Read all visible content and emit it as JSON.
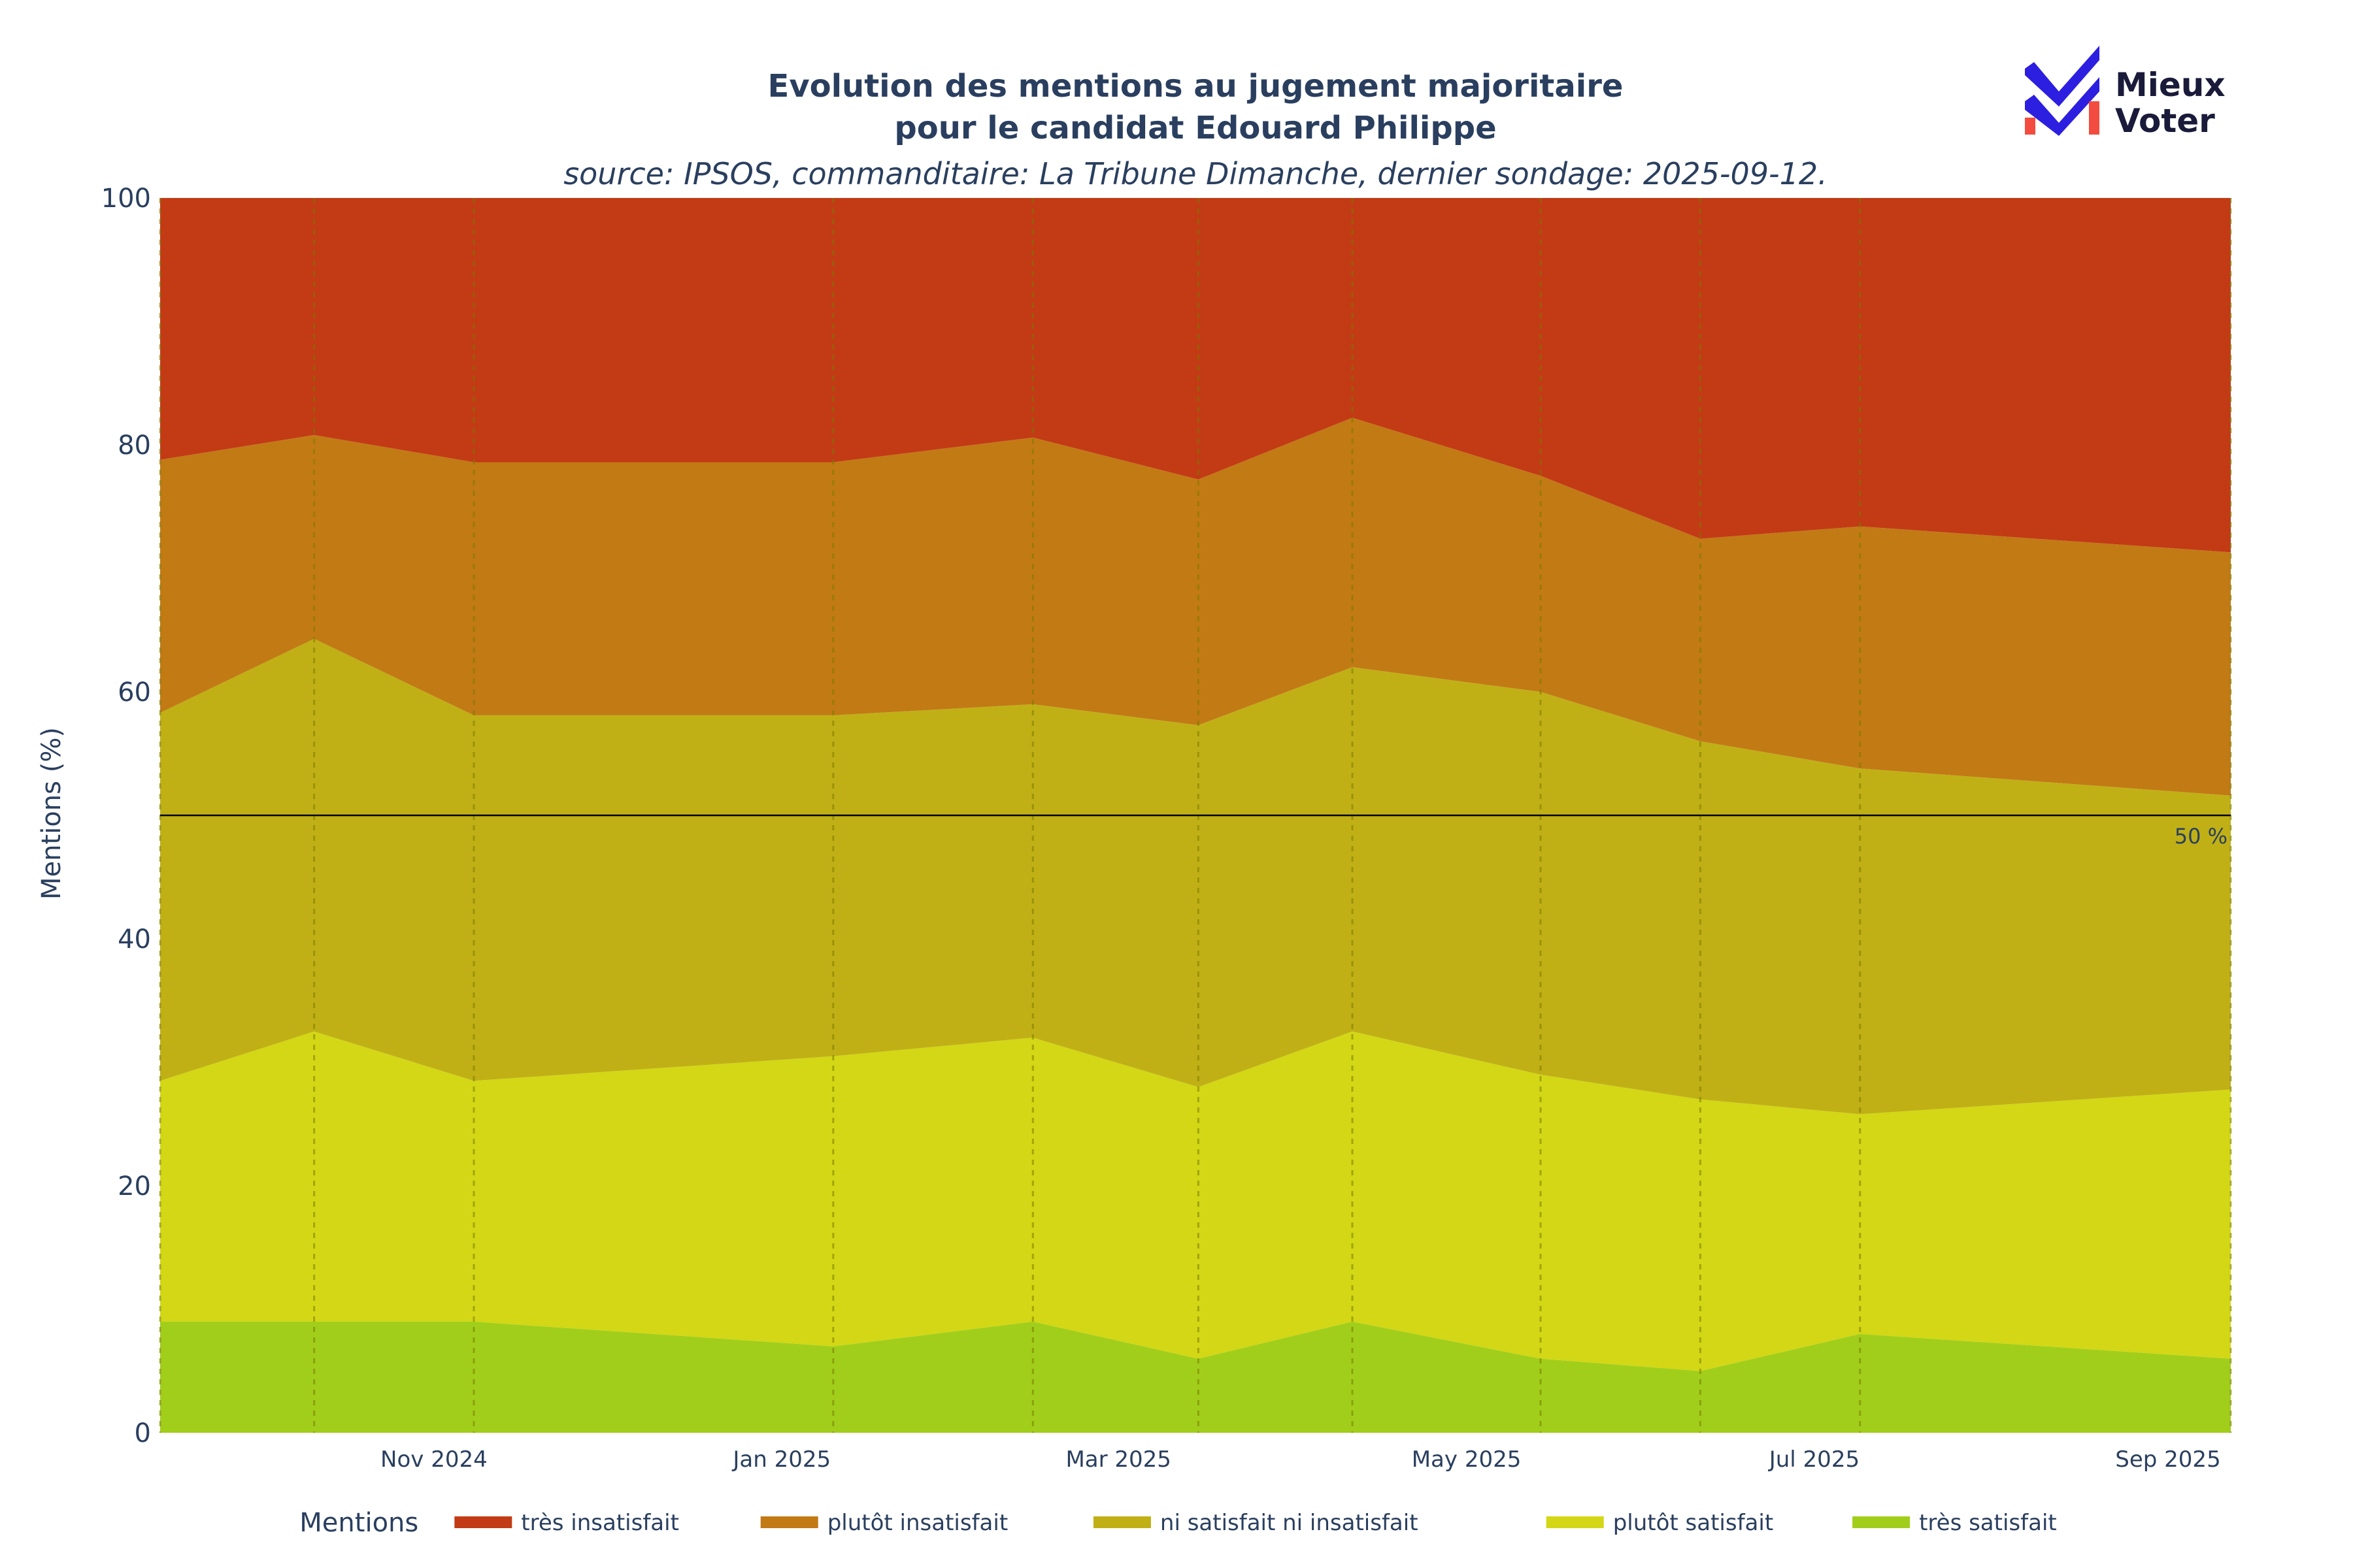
{
  "chart_data": {
    "type": "area",
    "title_line1": "Evolution des mentions au jugement majoritaire",
    "title_line2": "pour le candidat Edouard Philippe",
    "subtitle": "source: IPSOS, commanditaire: La Tribune Dimanche, dernier sondage: 2025-09-12.",
    "ylabel": "Mentions (%)",
    "ylim": [
      0,
      100
    ],
    "y_ticks": [
      0,
      20,
      40,
      60,
      80,
      100
    ],
    "x_range": [
      "2024-09-14",
      "2025-09-12"
    ],
    "x_ticks": [
      {
        "date": "2024-11-01",
        "label": "Nov 2024"
      },
      {
        "date": "2025-01-01",
        "label": "Jan 2025"
      },
      {
        "date": "2025-03-01",
        "label": "Mar 2025"
      },
      {
        "date": "2025-05-01",
        "label": "May 2025"
      },
      {
        "date": "2025-07-01",
        "label": "Jul 2025"
      },
      {
        "date": "2025-09-01",
        "label": "Sep 2025"
      }
    ],
    "x": [
      "2024-09-14",
      "2024-10-11",
      "2024-11-08",
      "2025-01-10",
      "2025-02-14",
      "2025-03-15",
      "2025-04-11",
      "2025-05-14",
      "2025-06-11",
      "2025-07-09",
      "2025-09-12"
    ],
    "series": [
      {
        "name": "très satisfait",
        "color": "#a1ce1b",
        "values": [
          9,
          9,
          9,
          7,
          9,
          6,
          9,
          6,
          5,
          8,
          6
        ]
      },
      {
        "name": "plutôt satisfait",
        "color": "#d3d715",
        "values": [
          19.5,
          23.5,
          19.5,
          23.5,
          23,
          22,
          23.5,
          23,
          22,
          17.8,
          21.8
        ]
      },
      {
        "name": "ni satisfait ni insatisfait",
        "color": "#c0b016",
        "values": [
          29.8,
          31.8,
          29.6,
          27.6,
          27,
          29.3,
          29.5,
          31,
          29,
          28,
          23.8
        ]
      },
      {
        "name": "plutôt insatisfait",
        "color": "#c27a15",
        "values": [
          20.5,
          16.5,
          20.5,
          20.5,
          21.6,
          19.9,
          20.2,
          17.5,
          16.4,
          19.6,
          19.7
        ]
      },
      {
        "name": "très insatisfait",
        "color": "#c23b15",
        "values": [
          21.2,
          19.2,
          21.4,
          21.4,
          19.4,
          22.8,
          17.8,
          22.5,
          27.6,
          26.6,
          28.7
        ]
      }
    ],
    "reference_line": {
      "y": 50,
      "label": "50 %"
    },
    "legend_title": "Mentions",
    "legend_position": "bottom"
  },
  "logo": {
    "line1": "Mieux",
    "line2": "Voter"
  },
  "colors": {
    "text": "#2a3f5f",
    "vline": "#7a7a00"
  }
}
